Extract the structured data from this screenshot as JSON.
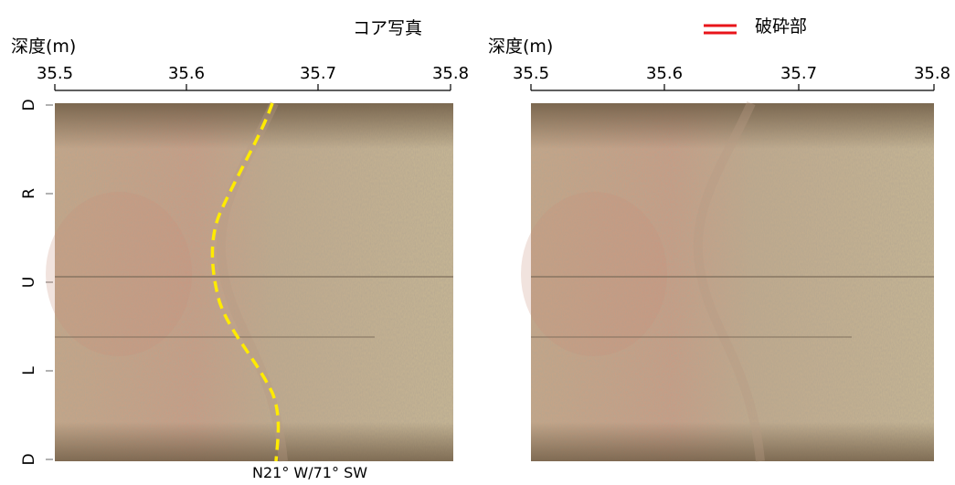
{
  "left_panel": {
    "title": "コア写真",
    "axis_title": "深度(m)",
    "ticks": [
      "35.5",
      "35.6",
      "35.7",
      "35.8"
    ],
    "orientation_labels": [
      "D",
      "R",
      "U",
      "L",
      "D"
    ],
    "fracture_note": "N21° W/71° SW",
    "fracture_line_color": "#ffeb00"
  },
  "right_panel": {
    "axis_title": "深度(m)",
    "ticks": [
      "35.5",
      "35.6",
      "35.7",
      "35.8"
    ],
    "legend": {
      "label": "破砕部",
      "color": "#e8141a"
    }
  },
  "colors": {
    "rock_base": "#b9a183",
    "rock_dark": "#7d6a52",
    "rock_pink": "#c79a86",
    "rock_light": "#cbbb9b"
  }
}
